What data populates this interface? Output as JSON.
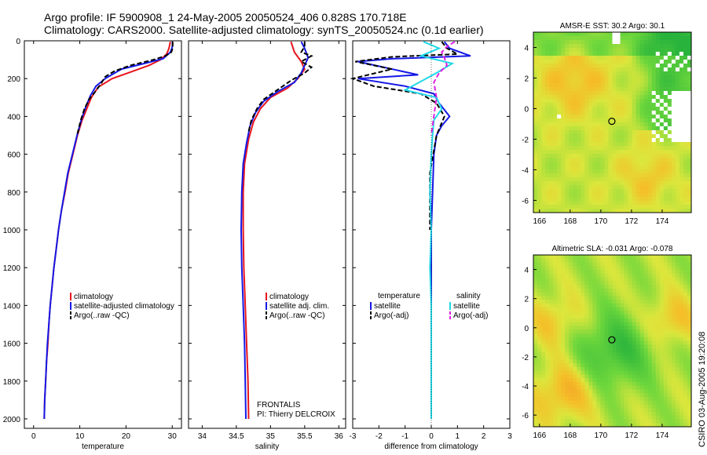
{
  "header": {
    "line1": "Argo profile: IF 5900908_1 24-May-2005 20050524_406 0.828S 170.718E",
    "line2": "Climatology: CARS2000. Satellite-adjusted climatology: synTS_20050524.nc (0.1d earlier)"
  },
  "credit": "CSIRO 03-Aug-2005 19:20:08",
  "colors": {
    "climatology": "#e8141e",
    "satellite": "#1418e6",
    "argo": "#000000",
    "sal_satellite": "#20d8e8",
    "sal_argo": "#e020e0"
  },
  "chart_data": [
    {
      "type": "line",
      "panel": "temperature",
      "xlabel": "temperature",
      "ylabel": "",
      "xlim": [
        -2,
        32
      ],
      "ylim": [
        2050,
        0
      ],
      "xticks": [
        "0",
        "10",
        "20",
        "30"
      ],
      "yticks": [
        "0",
        "200",
        "400",
        "600",
        "800",
        "1000",
        "1200",
        "1400",
        "1600",
        "1800",
        "2000"
      ],
      "legend": [
        "climatology",
        "satellite-adjusted climatology",
        "Argo(..raw -QC)"
      ],
      "series": [
        {
          "name": "climatology",
          "color": "#e8141e",
          "dash": "",
          "points": [
            [
              29.6,
              5
            ],
            [
              29.3,
              40
            ],
            [
              28.8,
              70
            ],
            [
              27.5,
              100
            ],
            [
              25,
              130
            ],
            [
              21,
              165
            ],
            [
              17,
              200
            ],
            [
              14,
              245
            ],
            [
              12.5,
              300
            ],
            [
              11.5,
              360
            ],
            [
              10.5,
              420
            ],
            [
              9.5,
              500
            ],
            [
              8.5,
              600
            ],
            [
              7.5,
              700
            ],
            [
              6.8,
              800
            ],
            [
              6.0,
              900
            ],
            [
              5.4,
              1000
            ],
            [
              4.9,
              1100
            ],
            [
              4.4,
              1200
            ],
            [
              4.0,
              1300
            ],
            [
              3.6,
              1400
            ],
            [
              3.3,
              1500
            ],
            [
              3.1,
              1600
            ],
            [
              2.8,
              1700
            ],
            [
              2.6,
              1800
            ],
            [
              2.4,
              1900
            ],
            [
              2.3,
              2000
            ]
          ]
        },
        {
          "name": "satellite-adjusted climatology",
          "color": "#1418e6",
          "dash": "",
          "points": [
            [
              30.1,
              5
            ],
            [
              30,
              35
            ],
            [
              29.6,
              60
            ],
            [
              28,
              95
            ],
            [
              24,
              120
            ],
            [
              19,
              150
            ],
            [
              15.5,
              200
            ],
            [
              13.5,
              240
            ],
            [
              12.3,
              290
            ],
            [
              11.3,
              350
            ],
            [
              10.3,
              420
            ],
            [
              9.4,
              500
            ],
            [
              8.4,
              600
            ],
            [
              7.4,
              700
            ],
            [
              6.7,
              800
            ],
            [
              6.0,
              900
            ],
            [
              5.4,
              1000
            ],
            [
              4.9,
              1100
            ],
            [
              4.4,
              1200
            ],
            [
              4.0,
              1300
            ],
            [
              3.6,
              1400
            ],
            [
              3.3,
              1500
            ],
            [
              3.0,
              1600
            ],
            [
              2.8,
              1700
            ],
            [
              2.6,
              1800
            ],
            [
              2.4,
              1900
            ],
            [
              2.3,
              2000
            ]
          ]
        },
        {
          "name": "Argo(..raw -QC)",
          "color": "#000000",
          "dash": "6 3",
          "points": [
            [
              30.1,
              5
            ],
            [
              30.1,
              40
            ],
            [
              29.8,
              60
            ],
            [
              28.5,
              80
            ],
            [
              26,
              100
            ],
            [
              21,
              130
            ],
            [
              17.5,
              160
            ],
            [
              15.5,
              190
            ],
            [
              14.5,
              230
            ],
            [
              13.3,
              270
            ],
            [
              12,
              310
            ],
            [
              11,
              360
            ],
            [
              10.2,
              420
            ],
            [
              9.4,
              500
            ]
          ]
        }
      ]
    },
    {
      "type": "line",
      "panel": "salinity",
      "xlabel": "salinity",
      "ylabel": "",
      "xlim": [
        33.8,
        36.1
      ],
      "ylim": [
        2050,
        0
      ],
      "xticks": [
        "34",
        "34.5",
        "35",
        "35.5",
        "36"
      ],
      "yticks": [],
      "legend": [
        "climatology",
        "satellite adj. clim.",
        "Argo(..raw -QC)"
      ],
      "annotations": [
        "FRONTALIS",
        "PI: Thierry DELCROIX"
      ],
      "series": [
        {
          "name": "climatology",
          "color": "#e8141e",
          "dash": "",
          "points": [
            [
              35.3,
              5
            ],
            [
              35.35,
              60
            ],
            [
              35.45,
              110
            ],
            [
              35.5,
              150
            ],
            [
              35.4,
              200
            ],
            [
              35.25,
              250
            ],
            [
              35.0,
              300
            ],
            [
              34.85,
              360
            ],
            [
              34.75,
              430
            ],
            [
              34.68,
              520
            ],
            [
              34.62,
              650
            ],
            [
              34.6,
              800
            ],
            [
              34.6,
              1000
            ],
            [
              34.61,
              1200
            ],
            [
              34.63,
              1400
            ],
            [
              34.65,
              1600
            ],
            [
              34.67,
              1800
            ],
            [
              34.68,
              2000
            ]
          ]
        },
        {
          "name": "satellite adj. clim.",
          "color": "#1418e6",
          "dash": "",
          "points": [
            [
              35.45,
              5
            ],
            [
              35.5,
              40
            ],
            [
              35.55,
              90
            ],
            [
              35.5,
              130
            ],
            [
              35.45,
              170
            ],
            [
              35.35,
              220
            ],
            [
              35.1,
              270
            ],
            [
              34.9,
              320
            ],
            [
              34.78,
              380
            ],
            [
              34.7,
              450
            ],
            [
              34.65,
              540
            ],
            [
              34.6,
              650
            ],
            [
              34.58,
              800
            ],
            [
              34.57,
              1000
            ],
            [
              34.58,
              1200
            ],
            [
              34.6,
              1400
            ],
            [
              34.62,
              1600
            ],
            [
              34.63,
              1800
            ],
            [
              34.64,
              2000
            ]
          ]
        },
        {
          "name": "Argo(..raw -QC)",
          "color": "#000000",
          "dash": "6 3",
          "points": [
            [
              35.5,
              5
            ],
            [
              35.5,
              30
            ],
            [
              35.45,
              60
            ],
            [
              35.6,
              80
            ],
            [
              35.45,
              110
            ],
            [
              35.6,
              140
            ],
            [
              35.5,
              170
            ],
            [
              35.3,
              210
            ],
            [
              35.1,
              260
            ],
            [
              34.9,
              310
            ],
            [
              34.8,
              360
            ],
            [
              34.72,
              420
            ],
            [
              34.68,
              480
            ]
          ]
        }
      ]
    },
    {
      "type": "line",
      "panel": "difference",
      "xlabel": "difference from climatology",
      "ylabel": "",
      "xlim": [
        -3,
        3
      ],
      "ylim": [
        2050,
        0
      ],
      "xticks": [
        "-3",
        "-2",
        "-1",
        "0",
        "1",
        "2",
        "3"
      ],
      "yticks": [],
      "legend_left": {
        "title": "temperature",
        "items": [
          "satellite",
          "Argo(-adj)"
        ]
      },
      "legend_right": {
        "title": "salinity",
        "items": [
          "satellite",
          "Argo(-adj)"
        ]
      },
      "series": [
        {
          "name": "temperature satellite",
          "color": "#1418e6",
          "dash": "",
          "points": [
            [
              0.5,
              5
            ],
            [
              0.7,
              40
            ],
            [
              1.5,
              80
            ],
            [
              -1.5,
              95
            ],
            [
              -2.8,
              110
            ],
            [
              -0.5,
              180
            ],
            [
              -2.8,
              200
            ],
            [
              -1,
              240
            ],
            [
              0.1,
              280
            ],
            [
              0.3,
              330
            ],
            [
              0.7,
              400
            ],
            [
              0.4,
              450
            ],
            [
              0.2,
              500
            ],
            [
              0.1,
              600
            ],
            [
              0.05,
              800
            ],
            [
              0,
              1000
            ],
            [
              0,
              1200
            ],
            [
              0,
              1500
            ],
            [
              0,
              1800
            ],
            [
              0,
              2000
            ]
          ]
        },
        {
          "name": "temperature Argo(-adj)",
          "color": "#000000",
          "dash": "6 3",
          "points": [
            [
              0.4,
              5
            ],
            [
              0.6,
              40
            ],
            [
              1.0,
              70
            ],
            [
              -1.5,
              85
            ],
            [
              -2.9,
              110
            ],
            [
              -1.5,
              150
            ],
            [
              -3,
              200
            ],
            [
              -2.2,
              240
            ],
            [
              -0.4,
              280
            ],
            [
              0.2,
              330
            ],
            [
              0.5,
              400
            ],
            [
              0.2,
              500
            ],
            [
              -0.05,
              700
            ],
            [
              -0.05,
              1000
            ]
          ]
        },
        {
          "name": "salinity satellite",
          "color": "#20d8e8",
          "dash": "",
          "points": [
            [
              -0.3,
              5
            ],
            [
              0.3,
              40
            ],
            [
              -0.4,
              80
            ],
            [
              0.8,
              120
            ],
            [
              0.2,
              170
            ],
            [
              -1,
              260
            ],
            [
              0.2,
              300
            ],
            [
              0.4,
              360
            ],
            [
              0.1,
              420
            ],
            [
              0.05,
              500
            ],
            [
              0,
              600
            ],
            [
              -0.05,
              800
            ],
            [
              0,
              1000
            ],
            [
              -0.05,
              1200
            ],
            [
              0,
              1400
            ],
            [
              0,
              1600
            ],
            [
              0,
              1800
            ],
            [
              0,
              2000
            ]
          ]
        },
        {
          "name": "salinity Argo(-adj)",
          "color": "#e020e0",
          "dash": "6 3",
          "points": [
            [
              0.9,
              5
            ],
            [
              0.6,
              30
            ],
            [
              0.4,
              60
            ],
            [
              0.5,
              90
            ],
            [
              0.6,
              130
            ],
            [
              0.3,
              170
            ],
            [
              0.1,
              220
            ],
            [
              0.2,
              300
            ],
            [
              0.1,
              400
            ],
            [
              0,
              500
            ]
          ]
        }
      ]
    },
    {
      "type": "heatmap",
      "panel": "AMSR-E SST",
      "title": "AMSR-E SST: 30.2 Argo: 30.1",
      "xlim": [
        165.6,
        175.9
      ],
      "ylim": [
        -6.8,
        5
      ],
      "xticks": [
        "166",
        "168",
        "170",
        "172",
        "174"
      ],
      "yticks": [
        "4",
        "2",
        "0",
        "-2",
        "-4",
        "-6"
      ],
      "marker": {
        "lon": 170.718,
        "lat": -0.828
      }
    },
    {
      "type": "heatmap",
      "panel": "Altimetric SLA",
      "title": "Altimetric SLA: -0.031 Argo: -0.078",
      "xlim": [
        165.6,
        175.9
      ],
      "ylim": [
        -6.8,
        5
      ],
      "xticks": [
        "166",
        "168",
        "170",
        "172",
        "174"
      ],
      "yticks": [
        "4",
        "2",
        "0",
        "-2",
        "-4",
        "-6"
      ],
      "marker": {
        "lon": 170.718,
        "lat": -0.828
      }
    }
  ]
}
